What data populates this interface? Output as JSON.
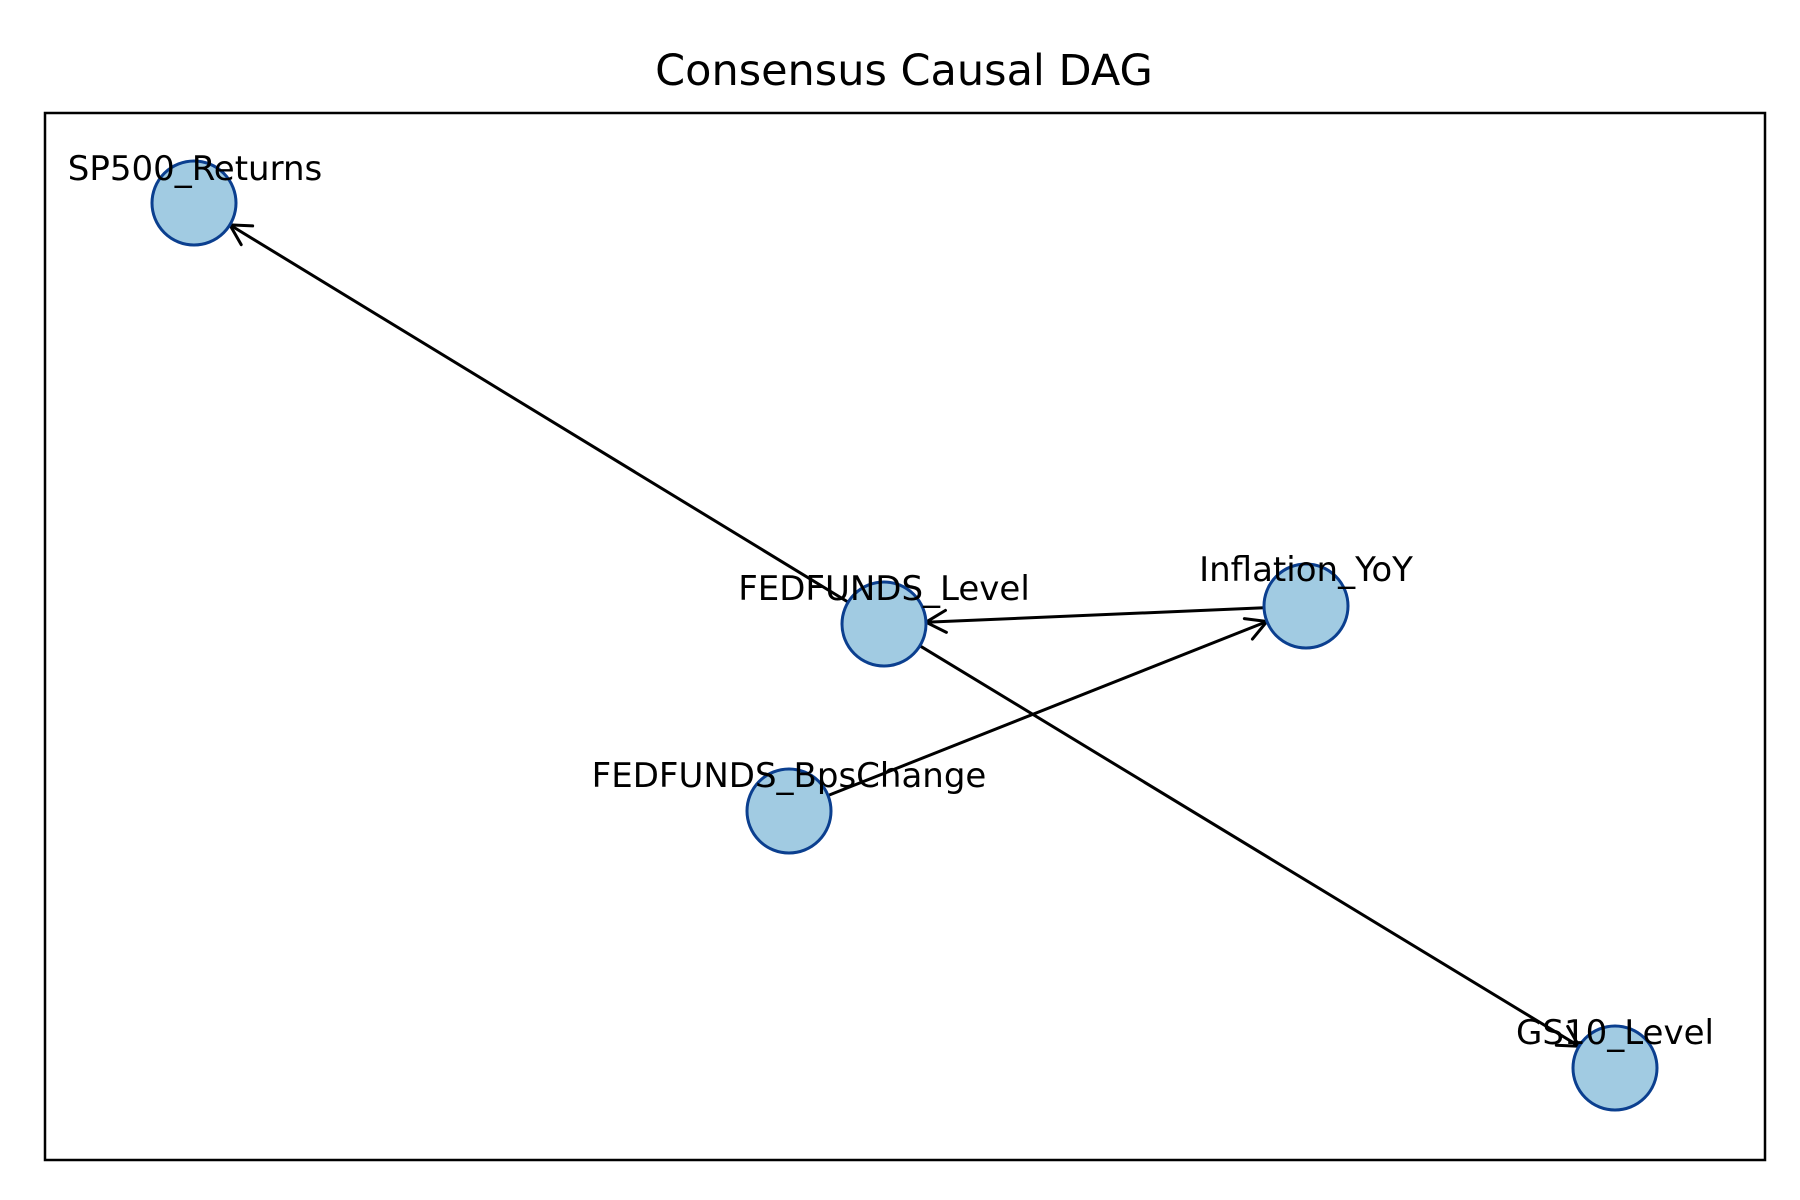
{
  "title": "Consensus Causal DAG",
  "colors": {
    "node_fill": "#a1cbe2",
    "node_stroke": "#0b3f8f",
    "edge": "#000000",
    "frame": "#000000",
    "background": "#ffffff"
  },
  "nodes": [
    {
      "id": "SP500_Returns",
      "label": "SP500_Returns"
    },
    {
      "id": "FEDFUNDS_Level",
      "label": "FEDFUNDS_Level"
    },
    {
      "id": "Inflation_YoY",
      "label": "Inflation_YoY"
    },
    {
      "id": "FEDFUNDS_BpsChange",
      "label": "FEDFUNDS_BpsChange"
    },
    {
      "id": "GS10_Level",
      "label": "GS10_Level"
    }
  ],
  "edges": [
    {
      "from": "FEDFUNDS_Level",
      "to": "SP500_Returns"
    },
    {
      "from": "FEDFUNDS_Level",
      "to": "GS10_Level"
    },
    {
      "from": "Inflation_YoY",
      "to": "FEDFUNDS_Level"
    },
    {
      "from": "FEDFUNDS_BpsChange",
      "to": "Inflation_YoY"
    }
  ]
}
